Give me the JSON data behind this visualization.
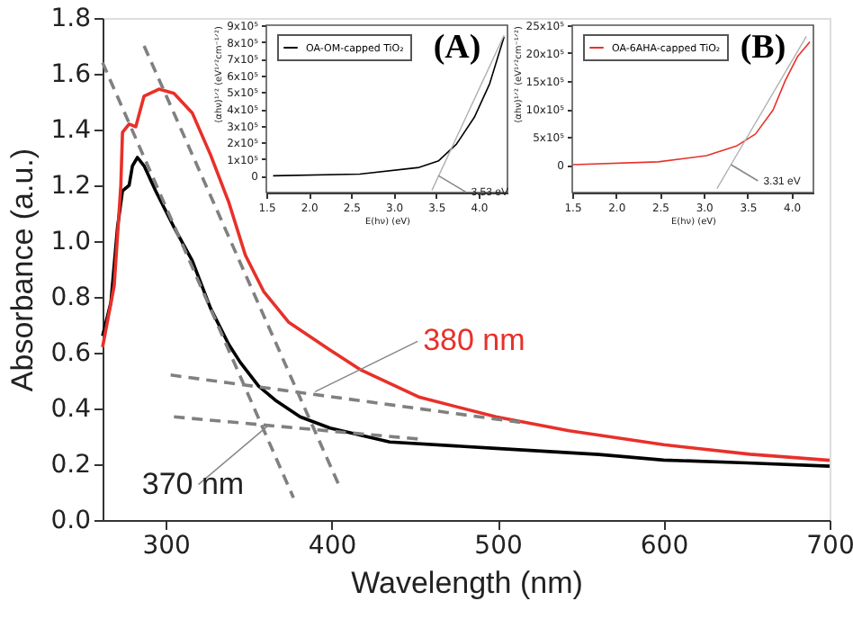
{
  "chart_data": [
    {
      "type": "line",
      "xlabel": "Wavelength (nm)",
      "ylabel": "Absorbance (a.u.)",
      "xlim": [
        262,
        700
      ],
      "ylim": [
        0,
        1.8
      ],
      "xticks": [
        300,
        400,
        500,
        600,
        700
      ],
      "yticks": [
        {
          "value": 0,
          "label": "0.0"
        },
        0.2,
        0.4,
        0.6,
        0.8,
        {
          "value": 1,
          "label": "1.0"
        },
        1.2,
        1.4,
        1.6,
        1.8
      ],
      "grid": false,
      "marker": "none",
      "series": [
        {
          "color": "#000000",
          "line_style": "solid",
          "x": [
            262,
            267,
            271,
            274,
            278,
            280,
            283,
            287,
            294,
            305,
            316,
            327,
            338,
            345,
            356,
            366,
            381,
            399,
            435,
            499,
            561,
            600,
            650,
            700
          ],
          "values": [
            0.66,
            0.78,
            1.05,
            1.18,
            1.2,
            1.27,
            1.3,
            1.27,
            1.18,
            1.05,
            0.93,
            0.76,
            0.63,
            0.565,
            0.48,
            0.43,
            0.37,
            0.33,
            0.28,
            0.257,
            0.235,
            0.215,
            0.205,
            0.193
          ]
        },
        {
          "color": "#e8302a",
          "line_style": "solid",
          "x": [
            262,
            269,
            273,
            274,
            278,
            282,
            287,
            296,
            305,
            316,
            327,
            338,
            348,
            359,
            374,
            399,
            417,
            453,
            499,
            543,
            600,
            652,
            700
          ],
          "values": [
            0.62,
            0.84,
            1.2,
            1.39,
            1.42,
            1.41,
            1.52,
            1.545,
            1.53,
            1.46,
            1.31,
            1.14,
            0.95,
            0.82,
            0.71,
            0.61,
            0.54,
            0.44,
            0.37,
            0.32,
            0.27,
            0.236,
            0.214
          ]
        },
        {
          "type": "line",
          "color": "#808080",
          "line_style": "dashed",
          "x": [
            262,
            377
          ],
          "values": [
            1.64,
            0.08
          ]
        },
        {
          "type": "line",
          "color": "#808080",
          "line_style": "dashed",
          "x": [
            287,
            404
          ],
          "values": [
            1.7,
            0.13
          ]
        },
        {
          "type": "line",
          "color": "#808080",
          "line_style": "dashed",
          "x": [
            303,
            514
          ],
          "values": [
            0.52,
            0.35
          ]
        },
        {
          "type": "line",
          "color": "#808080",
          "line_style": "dashed",
          "x": [
            305,
            453
          ],
          "values": [
            0.37,
            0.29
          ]
        }
      ],
      "annotations": [
        {
          "text": "380 nm",
          "x": 390,
          "y": 0.46
        },
        {
          "text": "370 nm",
          "x": 362,
          "y": 0.34
        }
      ]
    },
    {
      "type": "line",
      "title": "(A)",
      "xlabel": "E(hν) (eV)",
      "ylabel": "(αhν)¹ᐟ² (eV¹ᐟ²cm⁻¹ᐟ²)",
      "xlim": [
        1.5,
        4.34
      ],
      "ylim": [
        -100000,
        900000
      ],
      "xticks": [
        1.5,
        {
          "value": 2,
          "label": "2.0"
        },
        2.5,
        {
          "value": 3,
          "label": "3.0"
        },
        3.5,
        {
          "value": 4,
          "label": "4.0"
        }
      ],
      "yticks": [
        0,
        {
          "value": 100000,
          "label": "1x10⁵"
        },
        {
          "value": 200000,
          "label": "2x10⁵"
        },
        {
          "value": 300000,
          "label": "3x10⁵"
        },
        {
          "value": 400000,
          "label": "4x10⁵"
        },
        {
          "value": 500000,
          "label": "5x10⁵"
        },
        {
          "value": 600000,
          "label": "6x10⁵"
        },
        {
          "value": 700000,
          "label": "7x10⁵"
        },
        {
          "value": 800000,
          "label": "8x10⁵"
        },
        {
          "value": 900000,
          "label": "9x10⁵"
        }
      ],
      "grid": false,
      "legend": "top left",
      "marker": "none",
      "series": [
        {
          "name": "OA-OM-capped TiO₂",
          "color": "#000000",
          "x": [
            1.58,
            2.6,
            3.3,
            3.53,
            3.74,
            3.95,
            4.13,
            4.3
          ],
          "values": [
            0,
            10000,
            50000,
            90000,
            190000,
            350000,
            550000,
            830000
          ]
        },
        {
          "type": "line",
          "color": "#b0b0b0",
          "x": [
            3.45,
            3.53,
            4.3
          ],
          "values": [
            -87000,
            0,
            840000
          ]
        }
      ],
      "annotations": [
        {
          "text": "3.53 eV",
          "x": 3.53,
          "y": 0
        }
      ]
    },
    {
      "type": "line",
      "title": "(B)",
      "xlabel": "E(hν) (eV)",
      "ylabel": "(αhν)¹ᐟ² (eV¹ᐟ²cm⁻¹ᐟ²)",
      "xlim": [
        1.5,
        4.25
      ],
      "ylim": [
        -500000,
        2500000
      ],
      "xticks": [
        1.5,
        {
          "value": 2,
          "label": "2.0"
        },
        2.5,
        {
          "value": 3,
          "label": "3.0"
        },
        3.5,
        {
          "value": 4,
          "label": "4.0"
        }
      ],
      "yticks": [
        0,
        {
          "value": 500000,
          "label": "5x10⁵"
        },
        {
          "value": 1000000,
          "label": "10x10⁵"
        },
        {
          "value": 1500000,
          "label": "15x10⁵"
        },
        {
          "value": 2000000,
          "label": "20x10⁵"
        },
        {
          "value": 2500000,
          "label": "25x10⁵"
        }
      ],
      "grid": false,
      "legend": "top left",
      "marker": "none",
      "series": [
        {
          "name": "OA-6AHA-capped TiO₂",
          "color": "#e8302a",
          "x": [
            1.51,
            2.48,
            3.03,
            3.38,
            3.59,
            3.79,
            3.93,
            4.07,
            4.21
          ],
          "values": [
            0,
            50000,
            160000,
            340000,
            550000,
            980000,
            1510000,
            1940000,
            2200000
          ]
        },
        {
          "type": "line",
          "color": "#b0b0b0",
          "x": [
            3.15,
            3.31,
            4.17
          ],
          "values": [
            -430000,
            0,
            2300000
          ]
        }
      ],
      "annotations": [
        {
          "text": "3.31 eV",
          "x": 3.31,
          "y": 0
        }
      ]
    }
  ]
}
